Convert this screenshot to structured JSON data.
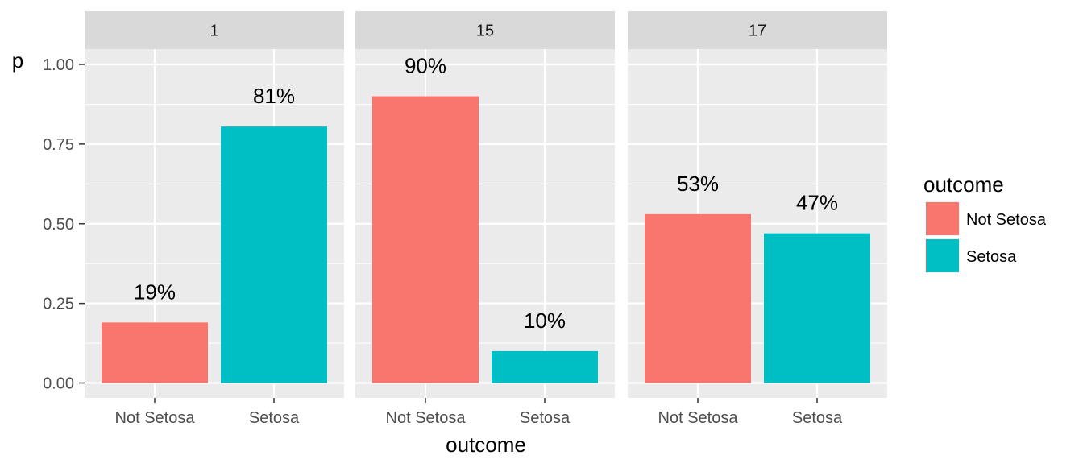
{
  "chart_data": {
    "type": "bar",
    "facet_variable_values": [
      "1",
      "15",
      "17"
    ],
    "categories": [
      "Not Setosa",
      "Setosa"
    ],
    "panels": [
      {
        "facet": "1",
        "values": [
          0.19,
          0.805
        ],
        "labels": [
          "19%",
          "81%"
        ]
      },
      {
        "facet": "15",
        "values": [
          0.9,
          0.1
        ],
        "labels": [
          "90%",
          "10%"
        ]
      },
      {
        "facet": "17",
        "values": [
          0.53,
          0.47
        ],
        "labels": [
          "53%",
          "47%"
        ]
      }
    ],
    "xlabel": "outcome",
    "ylabel": "p",
    "ylim": [
      -0.05,
      1.1
    ],
    "yticks": [
      0.0,
      0.25,
      0.5,
      0.75,
      1.0
    ],
    "ytick_labels": [
      "0.00",
      "0.25",
      "0.50",
      "0.75",
      "1.00"
    ],
    "grid": true,
    "legend": {
      "title": "outcome",
      "placement": "right",
      "entries": [
        {
          "name": "Not Setosa",
          "color": "#F8766D"
        },
        {
          "name": "Setosa",
          "color": "#00BFC4"
        }
      ]
    },
    "colors": {
      "Not Setosa": "#F8766D",
      "Setosa": "#00BFC4",
      "panel_background": "#EBEBEB",
      "strip_background": "#D9D9D9",
      "grid": "#FFFFFF"
    }
  }
}
